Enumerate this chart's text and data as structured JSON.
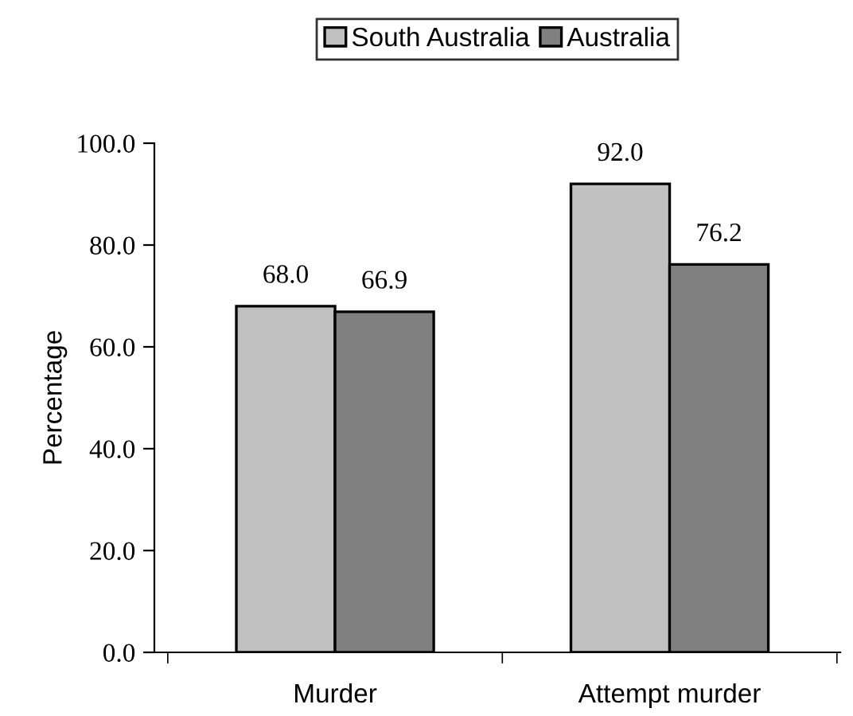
{
  "chart_data": {
    "type": "bar",
    "ylabel": "Percentage",
    "categories": [
      "Murder",
      "Attempt murder"
    ],
    "series": [
      {
        "name": "South Australia",
        "color": "#c0c0c0",
        "values": [
          68.0,
          92.0
        ],
        "value_labels": [
          "68.0",
          "92.0"
        ]
      },
      {
        "name": "Australia",
        "color": "#808080",
        "values": [
          66.9,
          76.2
        ],
        "value_labels": [
          "66.9",
          "76.2"
        ]
      }
    ],
    "ylim": [
      0,
      100
    ],
    "yticks": [
      {
        "value": 0,
        "label": "0.0"
      },
      {
        "value": 20,
        "label": "20.0"
      },
      {
        "value": 40,
        "label": "40.0"
      },
      {
        "value": 60,
        "label": "60.0"
      },
      {
        "value": 80,
        "label": "80.0"
      },
      {
        "value": 100,
        "label": "100.0"
      }
    ],
    "grid": false,
    "legend": "top"
  }
}
